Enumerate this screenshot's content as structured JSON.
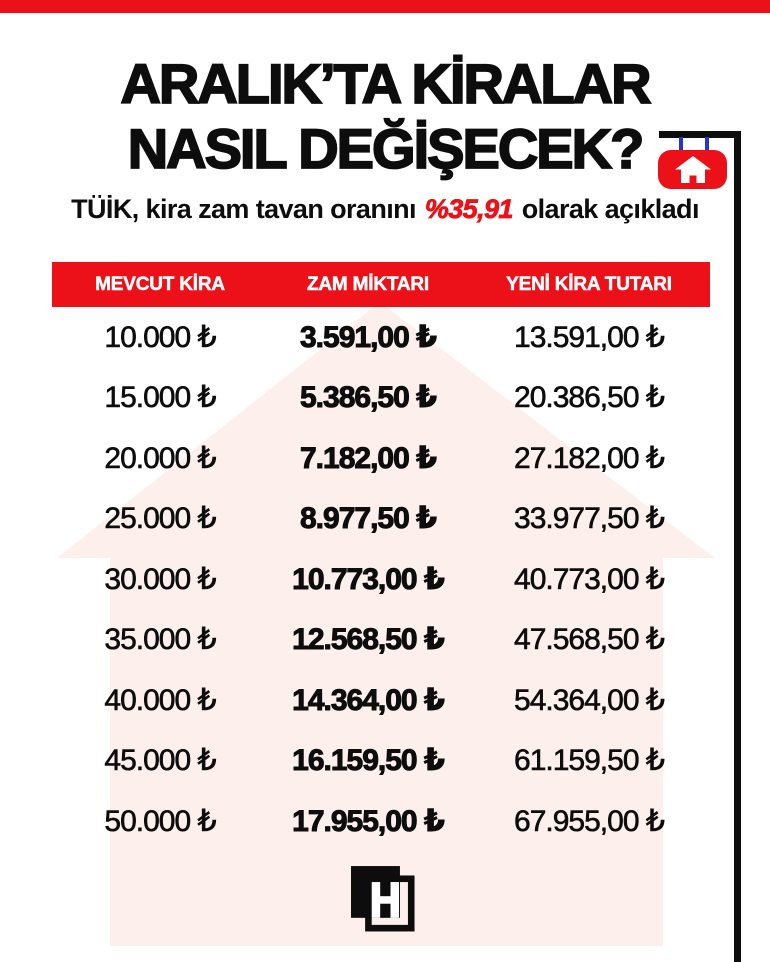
{
  "header": {
    "title_line1": "ARALIK’TA KİRALAR",
    "title_line2": "NASIL DEĞİŞECEK?",
    "subtitle_prefix": "TÜİK, kira zam tavan oranını ",
    "subtitle_highlight": "%35,91",
    "subtitle_suffix": " olarak açıkladı"
  },
  "colors": {
    "red": "#ec1118",
    "pink_arrow": "#fcefec",
    "blue_hanger": "#2236d8",
    "text_black": "#0d0d0d",
    "white": "#ffffff"
  },
  "icons": {
    "sign_icon": "house-icon",
    "footer_logo": "hurriyet-h-logo",
    "background_shape": "up-arrow"
  },
  "table": {
    "headers": [
      "MEVCUT KİRA",
      "ZAM MİKTARI",
      "YENİ KİRA TUTARI"
    ],
    "rows": [
      [
        "10.000 ₺",
        "3.591,00 ₺",
        "13.591,00 ₺"
      ],
      [
        "15.000 ₺",
        "5.386,50 ₺",
        "20.386,50 ₺"
      ],
      [
        "20.000 ₺",
        "7.182,00 ₺",
        "27.182,00 ₺"
      ],
      [
        "25.000 ₺",
        "8.977,50 ₺",
        "33.977,50 ₺"
      ],
      [
        "30.000 ₺",
        "10.773,00 ₺",
        "40.773,00 ₺"
      ],
      [
        "35.000 ₺",
        "12.568,50 ₺",
        "47.568,50 ₺"
      ],
      [
        "40.000 ₺",
        "14.364,00 ₺",
        "54.364,00 ₺"
      ],
      [
        "45.000 ₺",
        "16.159,50 ₺",
        "61.159,50 ₺"
      ],
      [
        "50.000 ₺",
        "17.955,00 ₺",
        "67.955,00 ₺"
      ]
    ]
  },
  "chart_data": {
    "type": "table",
    "title": "ARALIK’TA KİRALAR NASIL DEĞİŞECEK?",
    "subtitle": "TÜİK, kira zam tavan oranını %35,91 olarak açıkladı",
    "increase_rate_percent": 35.91,
    "columns": [
      "MEVCUT KİRA",
      "ZAM MİKTARI",
      "YENİ KİRA TUTARI"
    ],
    "current_rent": [
      10000,
      15000,
      20000,
      25000,
      30000,
      35000,
      40000,
      45000,
      50000
    ],
    "increase_amount": [
      3591.0,
      5386.5,
      7182.0,
      8977.5,
      10773.0,
      12568.5,
      14364.0,
      16159.5,
      17955.0
    ],
    "new_rent": [
      13591.0,
      20386.5,
      27182.0,
      33977.5,
      40773.0,
      47568.5,
      54364.0,
      61159.5,
      67955.0
    ],
    "currency": "₺"
  }
}
